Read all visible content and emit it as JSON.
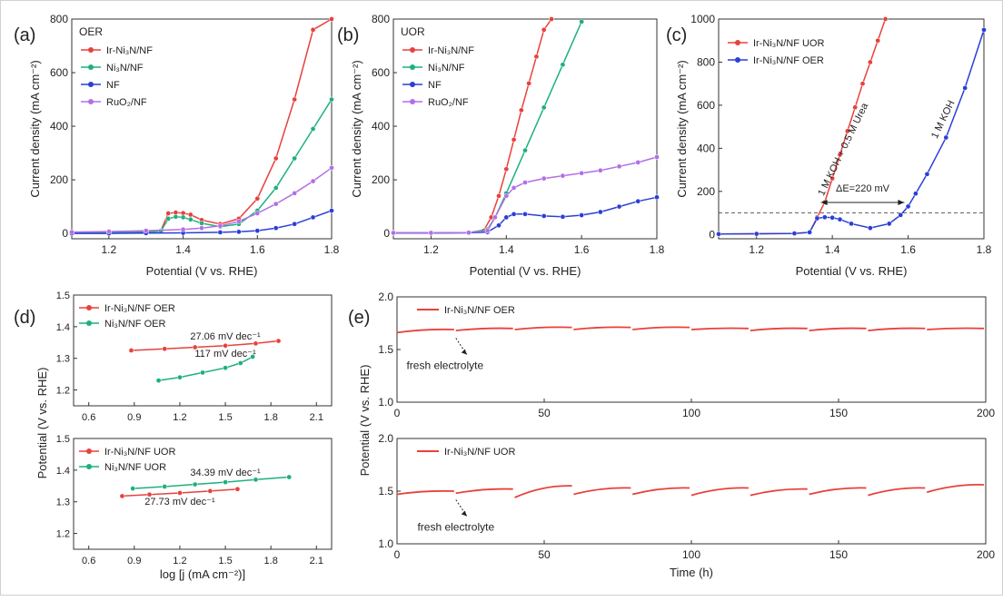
{
  "chart_data": [
    {
      "panel": "(a)",
      "type": "line",
      "legend_title": "OER",
      "xlabel": "Potential (V vs. RHE)",
      "ylabel": "Current density (mA cm⁻²)",
      "xlim": [
        1.1,
        1.8
      ],
      "ylim": [
        -20,
        800
      ],
      "xticks": [
        "1.2",
        "1.4",
        "1.6",
        "1.8"
      ],
      "xtick_values": [
        1.2,
        1.4,
        1.6,
        1.8
      ],
      "yticks": [
        "0",
        "200",
        "400",
        "600",
        "800"
      ],
      "ytick_values": [
        0,
        200,
        400,
        600,
        800
      ],
      "series": [
        {
          "name": "Ir-Ni₃N/NF",
          "color": "#e8413c",
          "x": [
            1.1,
            1.2,
            1.3,
            1.34,
            1.36,
            1.38,
            1.4,
            1.42,
            1.45,
            1.5,
            1.55,
            1.6,
            1.65,
            1.7,
            1.75,
            1.8
          ],
          "y": [
            2,
            3,
            5,
            10,
            75,
            78,
            76,
            70,
            50,
            35,
            55,
            130,
            280,
            500,
            760,
            800
          ]
        },
        {
          "name": "Ni₃N/NF",
          "color": "#1db07e",
          "x": [
            1.1,
            1.2,
            1.3,
            1.34,
            1.36,
            1.38,
            1.4,
            1.42,
            1.45,
            1.5,
            1.55,
            1.6,
            1.65,
            1.7,
            1.75,
            1.8
          ],
          "y": [
            2,
            3,
            4,
            8,
            55,
            62,
            60,
            52,
            38,
            25,
            35,
            85,
            170,
            280,
            390,
            500
          ]
        },
        {
          "name": "NF",
          "color": "#2b3fd6",
          "x": [
            1.1,
            1.2,
            1.3,
            1.4,
            1.5,
            1.55,
            1.6,
            1.65,
            1.7,
            1.75,
            1.8
          ],
          "y": [
            0,
            0,
            1,
            2,
            4,
            6,
            10,
            20,
            35,
            60,
            85
          ]
        },
        {
          "name": "RuO₂/NF",
          "color": "#b46ee6",
          "x": [
            1.1,
            1.2,
            1.3,
            1.4,
            1.45,
            1.5,
            1.55,
            1.6,
            1.65,
            1.7,
            1.75,
            1.8
          ],
          "y": [
            5,
            7,
            10,
            15,
            20,
            28,
            45,
            75,
            110,
            150,
            195,
            245
          ]
        }
      ]
    },
    {
      "panel": "(b)",
      "type": "line",
      "legend_title": "UOR",
      "xlabel": "Potential (V vs. RHE)",
      "ylabel": "Current density (mA cm⁻²)",
      "xlim": [
        1.1,
        1.8
      ],
      "ylim": [
        -20,
        800
      ],
      "xticks": [
        "1.2",
        "1.4",
        "1.6",
        "1.8"
      ],
      "xtick_values": [
        1.2,
        1.4,
        1.6,
        1.8
      ],
      "yticks": [
        "0",
        "200",
        "400",
        "600",
        "800"
      ],
      "ytick_values": [
        0,
        200,
        400,
        600,
        800
      ],
      "series": [
        {
          "name": "Ir-Ni₃N/NF",
          "color": "#e8413c",
          "x": [
            1.1,
            1.2,
            1.3,
            1.34,
            1.36,
            1.38,
            1.4,
            1.42,
            1.44,
            1.46,
            1.48,
            1.5,
            1.52
          ],
          "y": [
            2,
            2,
            3,
            10,
            60,
            140,
            240,
            350,
            460,
            560,
            660,
            760,
            800
          ]
        },
        {
          "name": "Ni₃N/NF",
          "color": "#1db07e",
          "x": [
            1.1,
            1.2,
            1.3,
            1.35,
            1.37,
            1.4,
            1.45,
            1.5,
            1.55,
            1.6
          ],
          "y": [
            2,
            2,
            3,
            15,
            60,
            150,
            310,
            470,
            630,
            790
          ]
        },
        {
          "name": "NF",
          "color": "#2b3fd6",
          "x": [
            1.1,
            1.2,
            1.3,
            1.35,
            1.38,
            1.4,
            1.42,
            1.45,
            1.5,
            1.55,
            1.6,
            1.65,
            1.7,
            1.75,
            1.8
          ],
          "y": [
            1,
            1,
            2,
            5,
            30,
            60,
            72,
            72,
            65,
            62,
            68,
            80,
            100,
            120,
            135
          ]
        },
        {
          "name": "RuO₂/NF",
          "color": "#b46ee6",
          "x": [
            1.1,
            1.2,
            1.3,
            1.35,
            1.37,
            1.4,
            1.42,
            1.45,
            1.5,
            1.55,
            1.6,
            1.65,
            1.7,
            1.75,
            1.8
          ],
          "y": [
            2,
            2,
            3,
            10,
            60,
            140,
            170,
            190,
            205,
            215,
            225,
            235,
            250,
            265,
            285
          ]
        }
      ]
    },
    {
      "panel": "(c)",
      "type": "line",
      "xlabel": "Potential (V vs. RHE)",
      "ylabel": "Current density (mA cm⁻²)",
      "xlim": [
        1.1,
        1.8
      ],
      "ylim": [
        -20,
        1000
      ],
      "xticks": [
        "1.2",
        "1.4",
        "1.6",
        "1.8"
      ],
      "xtick_values": [
        1.2,
        1.4,
        1.6,
        1.8
      ],
      "yticks": [
        "0",
        "200",
        "400",
        "600",
        "800",
        "1000"
      ],
      "ytick_values": [
        0,
        200,
        400,
        600,
        800,
        1000
      ],
      "series": [
        {
          "name": "Ir-Ni₃N/NF UOR",
          "color": "#e8413c",
          "x": [
            1.1,
            1.2,
            1.3,
            1.34,
            1.36,
            1.38,
            1.4,
            1.42,
            1.44,
            1.46,
            1.48,
            1.5,
            1.52,
            1.54
          ],
          "y": [
            2,
            3,
            4,
            10,
            80,
            150,
            260,
            370,
            480,
            590,
            700,
            800,
            900,
            1000
          ]
        },
        {
          "name": "Ir-Ni₃N/NF OER",
          "color": "#2b3fd6",
          "x": [
            1.1,
            1.2,
            1.3,
            1.34,
            1.36,
            1.38,
            1.4,
            1.42,
            1.45,
            1.5,
            1.55,
            1.58,
            1.6,
            1.62,
            1.65,
            1.7,
            1.75,
            1.8
          ],
          "y": [
            2,
            3,
            5,
            10,
            75,
            80,
            78,
            70,
            50,
            30,
            50,
            90,
            130,
            190,
            280,
            450,
            680,
            950
          ]
        }
      ],
      "annotations": {
        "red_curve_label": "1 M KOH + 0.5 M Urea",
        "blue_curve_label": "1 M KOH",
        "gap_label": "ΔE=220 mV",
        "reference_line_y": 100
      }
    },
    {
      "panel": "(d)",
      "type": "line",
      "subplots": [
        {
          "ylim": [
            1.15,
            1.5
          ],
          "xlim": [
            0.5,
            2.2
          ],
          "yticks": [
            "1.2",
            "1.3",
            "1.4",
            "1.5"
          ],
          "ytick_values": [
            1.2,
            1.3,
            1.4,
            1.5
          ],
          "xticks": [
            "0.6",
            "0.9",
            "1.2",
            "1.5",
            "1.8",
            "2.1"
          ],
          "xtick_values": [
            0.6,
            0.9,
            1.2,
            1.5,
            1.8,
            2.1
          ],
          "series": [
            {
              "name": "Ir-Ni₃N/NF OER",
              "color": "#e8413c",
              "x": [
                0.88,
                1.1,
                1.3,
                1.5,
                1.7,
                1.85
              ],
              "y": [
                1.325,
                1.33,
                1.335,
                1.34,
                1.347,
                1.355
              ],
              "slope_label": "27.06 mV dec⁻¹"
            },
            {
              "name": "Ni₃N/NF OER",
              "color": "#1db07e",
              "x": [
                1.06,
                1.2,
                1.35,
                1.5,
                1.6,
                1.68
              ],
              "y": [
                1.23,
                1.24,
                1.255,
                1.27,
                1.285,
                1.305
              ],
              "slope_label": "117 mV dec⁻¹"
            }
          ]
        },
        {
          "ylim": [
            1.15,
            1.5
          ],
          "xlim": [
            0.5,
            2.2
          ],
          "yticks": [
            "1.2",
            "1.3",
            "1.4",
            "1.5"
          ],
          "ytick_values": [
            1.2,
            1.3,
            1.4,
            1.5
          ],
          "xticks": [
            "0.6",
            "0.9",
            "1.2",
            "1.5",
            "1.8",
            "2.1"
          ],
          "xtick_values": [
            0.6,
            0.9,
            1.2,
            1.5,
            1.8,
            2.1
          ],
          "series": [
            {
              "name": "Ir-Ni₃N/NF UOR",
              "color": "#e8413c",
              "x": [
                0.82,
                1.0,
                1.2,
                1.4,
                1.58
              ],
              "y": [
                1.318,
                1.323,
                1.328,
                1.334,
                1.34
              ],
              "slope_label": "27.73 mV dec⁻¹"
            },
            {
              "name": "Ni₃N/NF UOR",
              "color": "#1db07e",
              "x": [
                0.89,
                1.1,
                1.3,
                1.5,
                1.7,
                1.92
              ],
              "y": [
                1.342,
                1.348,
                1.355,
                1.362,
                1.37,
                1.378
              ],
              "slope_label": "34.39 mV dec⁻¹"
            }
          ]
        }
      ],
      "xlabel": "log [j (mA cm⁻²)]",
      "ylabel": "Potential (V vs. RHE)"
    },
    {
      "panel": "(e)",
      "type": "line",
      "subplots": [
        {
          "series_name": "Ir-Ni₃N/NF OER",
          "color": "#e8413c",
          "ylim": [
            1.0,
            2.0
          ],
          "xlim": [
            0,
            200
          ],
          "yticks": [
            "1.0",
            "1.5",
            "2.0"
          ],
          "ytick_values": [
            1.0,
            1.5,
            2.0
          ],
          "xticks": [
            "0",
            "50",
            "100",
            "150",
            "200"
          ],
          "xtick_values": [
            0,
            50,
            100,
            150,
            200
          ],
          "segments": [
            [
              0,
              20,
              1.66,
              1.69
            ],
            [
              20,
              40,
              1.68,
              1.7
            ],
            [
              40,
              60,
              1.69,
              1.71
            ],
            [
              60,
              80,
              1.69,
              1.71
            ],
            [
              80,
              100,
              1.69,
              1.71
            ],
            [
              100,
              120,
              1.69,
              1.7
            ],
            [
              120,
              140,
              1.68,
              1.7
            ],
            [
              140,
              160,
              1.68,
              1.7
            ],
            [
              160,
              180,
              1.68,
              1.7
            ],
            [
              180,
              200,
              1.69,
              1.7
            ]
          ],
          "annotation": "fresh electrolyte"
        },
        {
          "series_name": "Ir-Ni₃N/NF UOR",
          "color": "#e8413c",
          "ylim": [
            1.0,
            2.0
          ],
          "xlim": [
            0,
            200
          ],
          "yticks": [
            "1.0",
            "1.5",
            "2.0"
          ],
          "ytick_values": [
            1.0,
            1.5,
            2.0
          ],
          "xticks": [
            "0",
            "50",
            "100",
            "150",
            "200"
          ],
          "xtick_values": [
            0,
            50,
            100,
            150,
            200
          ],
          "segments": [
            [
              0,
              20,
              1.47,
              1.5
            ],
            [
              20,
              40,
              1.48,
              1.52
            ],
            [
              40,
              60,
              1.44,
              1.55
            ],
            [
              60,
              80,
              1.47,
              1.53
            ],
            [
              80,
              100,
              1.47,
              1.53
            ],
            [
              100,
              120,
              1.46,
              1.53
            ],
            [
              120,
              140,
              1.46,
              1.52
            ],
            [
              140,
              160,
              1.47,
              1.53
            ],
            [
              160,
              180,
              1.46,
              1.53
            ],
            [
              180,
              200,
              1.49,
              1.56
            ]
          ],
          "annotation": "fresh electrolyte"
        }
      ],
      "xlabel": "Time (h)",
      "ylabel": "Potential (V vs. RHE)"
    }
  ]
}
